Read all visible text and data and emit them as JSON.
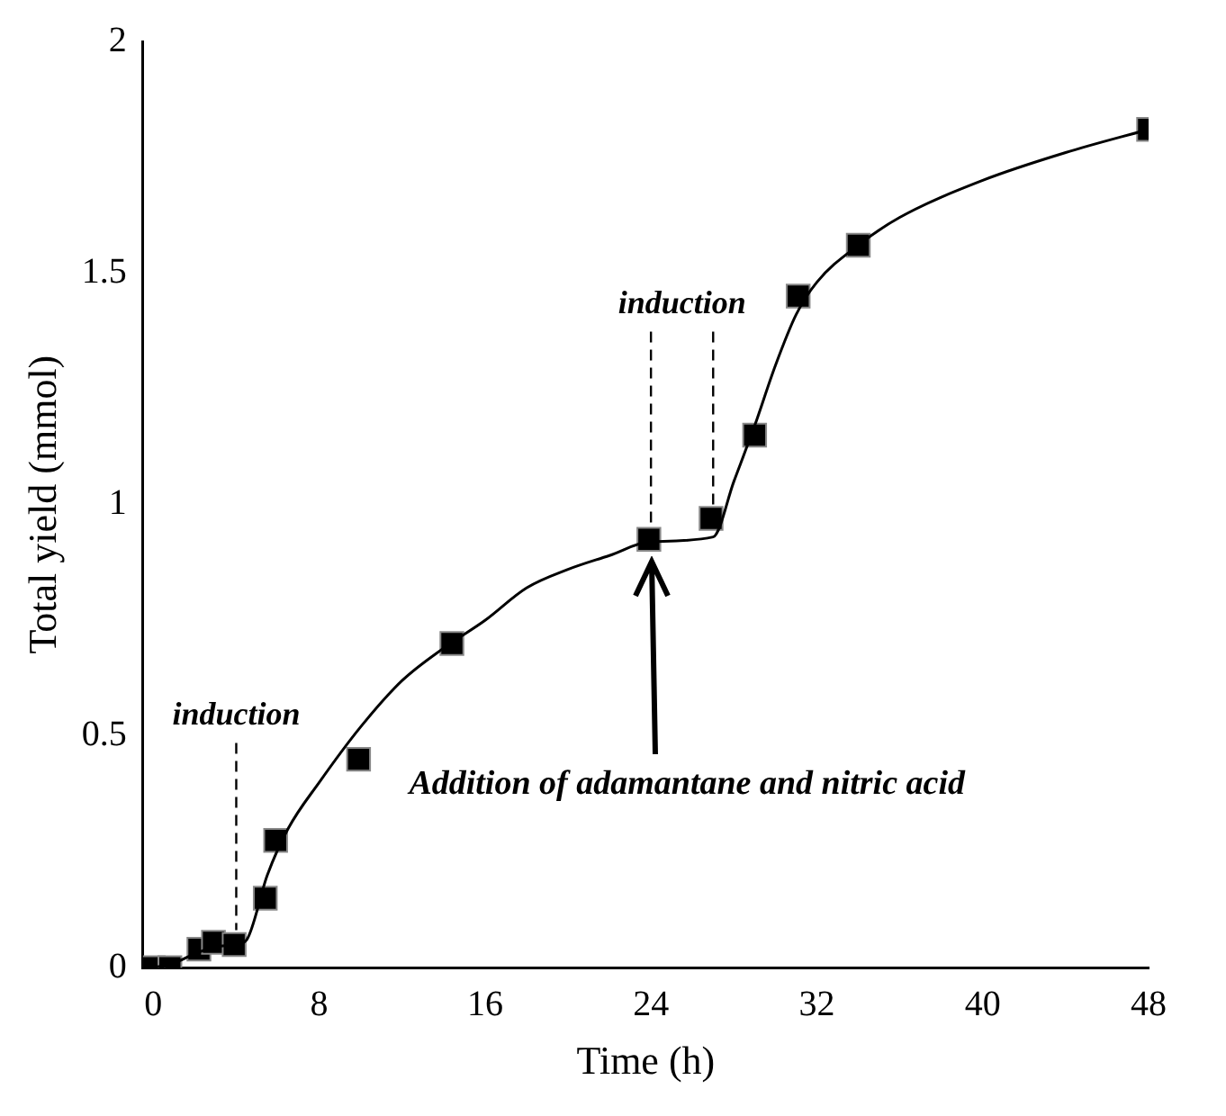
{
  "chart_data": {
    "type": "scatter",
    "xlabel": "Time (h)",
    "ylabel": "Total yield (mmol)",
    "xlim": [
      -0.5,
      48
    ],
    "xticks": [
      0,
      8,
      16,
      24,
      32,
      40,
      48
    ],
    "ylim": [
      0,
      2
    ],
    "yticks": [
      0,
      0.5,
      1,
      1.5,
      2
    ],
    "grid": false,
    "legend": false,
    "marker": "square",
    "series": [
      {
        "type": "scatter",
        "color": "#000000",
        "x": [
          0,
          0.8,
          2.2,
          2.9,
          3.9,
          5.4,
          5.9,
          9.9,
          14.4,
          23.9,
          26.9,
          29,
          31.1,
          34,
          48
        ],
        "values": [
          0,
          0,
          0.04,
          0.055,
          0.05,
          0.15,
          0.275,
          0.45,
          0.7,
          0.925,
          0.97,
          1.15,
          1.45,
          1.56,
          1.81
        ]
      },
      {
        "type": "line",
        "color": "#000000",
        "marker": "none",
        "line_style": "solid",
        "x": [
          0,
          1,
          2,
          3,
          4,
          4.5,
          5.5,
          6.5,
          8,
          10,
          12,
          14,
          16,
          18,
          20,
          22,
          24,
          27,
          28,
          29,
          30,
          31,
          32,
          34,
          36,
          40,
          44,
          48
        ],
        "values": [
          0,
          0.01,
          0.03,
          0.045,
          0.05,
          0.06,
          0.2,
          0.3,
          0.4,
          0.52,
          0.62,
          0.69,
          0.75,
          0.82,
          0.86,
          0.89,
          0.92,
          0.93,
          1.05,
          1.17,
          1.3,
          1.41,
          1.48,
          1.56,
          1.62,
          1.7,
          1.76,
          1.81
        ]
      }
    ],
    "ref_lines": [
      {
        "axis": "x",
        "value": 4,
        "line_style": "dashed",
        "color": "#000000"
      },
      {
        "axis": "x",
        "value": 24,
        "line_style": "dashed",
        "color": "#000000"
      },
      {
        "axis": "x",
        "value": 27,
        "line_style": "dashed",
        "color": "#000000"
      }
    ],
    "annotations": [
      "induction",
      "induction",
      "Addition of adamantane and nitric acid"
    ]
  }
}
